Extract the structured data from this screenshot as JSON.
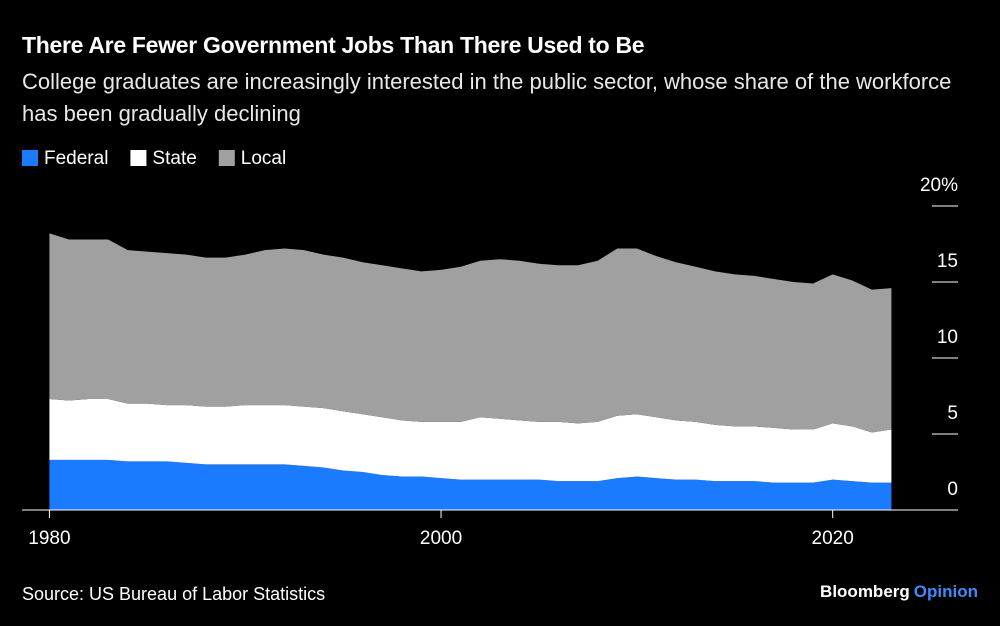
{
  "chart_data": {
    "type": "stacked-area",
    "title": "There Are Fewer Government Jobs Than There Used to Be",
    "subtitle": "College graduates are increasingly interested in the public sector, whose share of the workforce has been gradually declining",
    "legend": "top-left",
    "x": [
      1980,
      1981,
      1982,
      1983,
      1984,
      1985,
      1986,
      1987,
      1988,
      1989,
      1990,
      1991,
      1992,
      1993,
      1994,
      1995,
      1996,
      1997,
      1998,
      1999,
      2000,
      2001,
      2002,
      2003,
      2004,
      2005,
      2006,
      2007,
      2008,
      2009,
      2010,
      2011,
      2012,
      2013,
      2014,
      2015,
      2016,
      2017,
      2018,
      2019,
      2020,
      2021,
      2022,
      2023
    ],
    "series": [
      {
        "name": "Federal",
        "color": "#1a7bff",
        "values": [
          3.3,
          3.3,
          3.3,
          3.3,
          3.2,
          3.2,
          3.2,
          3.1,
          3.0,
          3.0,
          3.0,
          3.0,
          3.0,
          2.9,
          2.8,
          2.6,
          2.5,
          2.3,
          2.2,
          2.2,
          2.1,
          2.0,
          2.0,
          2.0,
          2.0,
          2.0,
          1.9,
          1.9,
          1.9,
          2.1,
          2.2,
          2.1,
          2.0,
          2.0,
          1.9,
          1.9,
          1.9,
          1.8,
          1.8,
          1.8,
          2.0,
          1.9,
          1.8,
          1.8
        ]
      },
      {
        "name": "State",
        "color": "#ffffff",
        "values": [
          4.0,
          3.9,
          4.0,
          4.0,
          3.8,
          3.8,
          3.7,
          3.8,
          3.8,
          3.8,
          3.9,
          3.9,
          3.9,
          3.9,
          3.9,
          3.9,
          3.8,
          3.8,
          3.7,
          3.6,
          3.7,
          3.8,
          4.1,
          4.0,
          3.9,
          3.8,
          3.9,
          3.8,
          3.9,
          4.1,
          4.1,
          4.0,
          3.9,
          3.8,
          3.7,
          3.6,
          3.6,
          3.6,
          3.5,
          3.5,
          3.7,
          3.6,
          3.3,
          3.5
        ]
      },
      {
        "name": "Local",
        "color": "#a0a0a0",
        "values": [
          10.9,
          10.6,
          10.5,
          10.5,
          10.1,
          10.0,
          10.0,
          9.9,
          9.8,
          9.8,
          9.9,
          10.2,
          10.3,
          10.3,
          10.1,
          10.1,
          10.0,
          10.0,
          10.0,
          9.9,
          10.0,
          10.2,
          10.3,
          10.5,
          10.5,
          10.4,
          10.3,
          10.4,
          10.6,
          11.0,
          10.9,
          10.6,
          10.4,
          10.2,
          10.1,
          10.0,
          9.9,
          9.8,
          9.7,
          9.6,
          9.8,
          9.6,
          9.4,
          9.3
        ]
      }
    ],
    "xlim": [
      1978.6,
      2026.4
    ],
    "xticks": [
      1980,
      2000,
      2020
    ],
    "ylim": [
      0,
      20
    ],
    "yticks": [
      0,
      5,
      10,
      15,
      {
        "value": 20,
        "label": "20%"
      }
    ],
    "source": "Source: US Bureau of Labor Statistics",
    "credit": {
      "brand": "Bloomberg",
      "product": "Opinion"
    }
  }
}
